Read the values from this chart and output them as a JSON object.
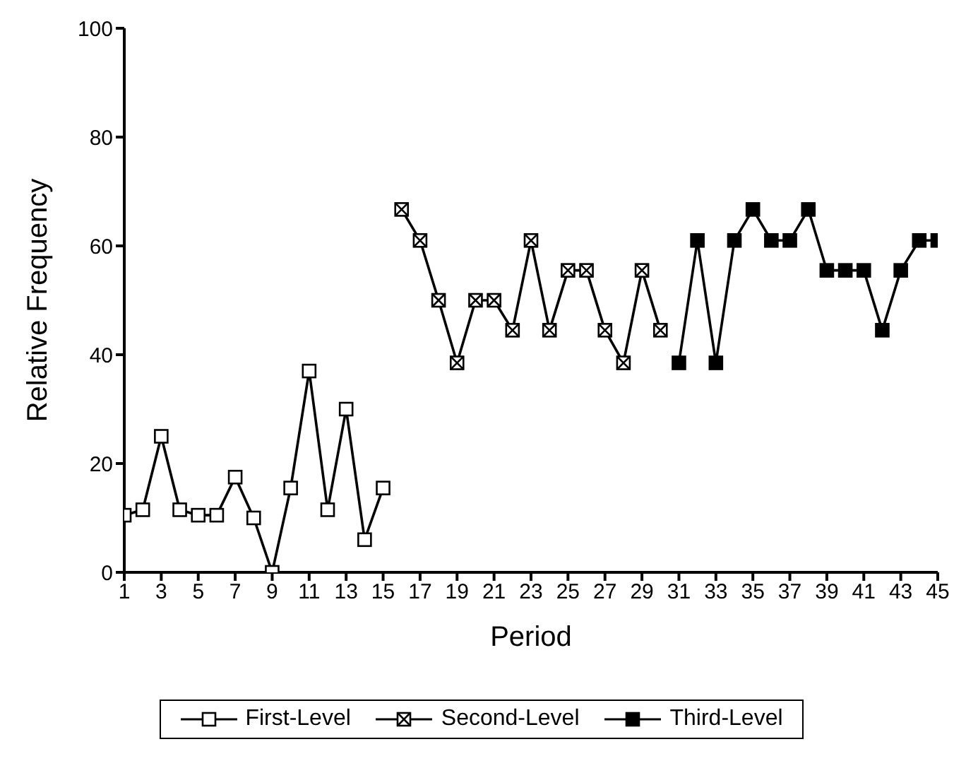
{
  "chart_data": {
    "type": "line",
    "xlabel": "Period",
    "ylabel": "Relative Frequency",
    "xlim": [
      1,
      45
    ],
    "xticks": [
      1,
      3,
      5,
      7,
      9,
      11,
      13,
      15,
      17,
      19,
      21,
      23,
      25,
      27,
      29,
      31,
      33,
      35,
      37,
      39,
      41,
      43,
      45
    ],
    "ylim": [
      0,
      100
    ],
    "yticks": [
      0,
      20,
      40,
      60,
      80,
      100
    ],
    "grid": false,
    "legend": "bottom",
    "marker": "square",
    "line_style": "solid",
    "series": [
      {
        "name": "First-Level",
        "color": "#000000",
        "x": [
          1,
          2,
          3,
          4,
          5,
          6,
          7,
          8,
          9,
          10,
          11,
          12,
          13,
          14,
          15
        ],
        "values": [
          10.5,
          11.5,
          25,
          11.5,
          10.5,
          10.5,
          17.5,
          10,
          0,
          15.5,
          37,
          11.5,
          30,
          6,
          15.5
        ]
      },
      {
        "name": "Second-Level",
        "color": "#000000",
        "x": [
          16,
          17,
          18,
          19,
          20,
          21,
          22,
          23,
          24,
          25,
          26,
          27,
          28,
          29,
          30
        ],
        "values": [
          66.7,
          61,
          50,
          38.5,
          50,
          50,
          44.5,
          61,
          44.5,
          55.5,
          55.5,
          44.5,
          38.5,
          55.5,
          44.5
        ]
      },
      {
        "name": "Third-Level",
        "color": "#000000",
        "x": [
          31,
          32,
          33,
          34,
          35,
          36,
          37,
          38,
          39,
          40,
          41,
          42,
          43,
          44,
          45
        ],
        "values": [
          38.5,
          61,
          38.5,
          61,
          66.7,
          61,
          61,
          66.7,
          55.5,
          55.5,
          55.5,
          44.5,
          55.5,
          61,
          61
        ]
      }
    ]
  }
}
